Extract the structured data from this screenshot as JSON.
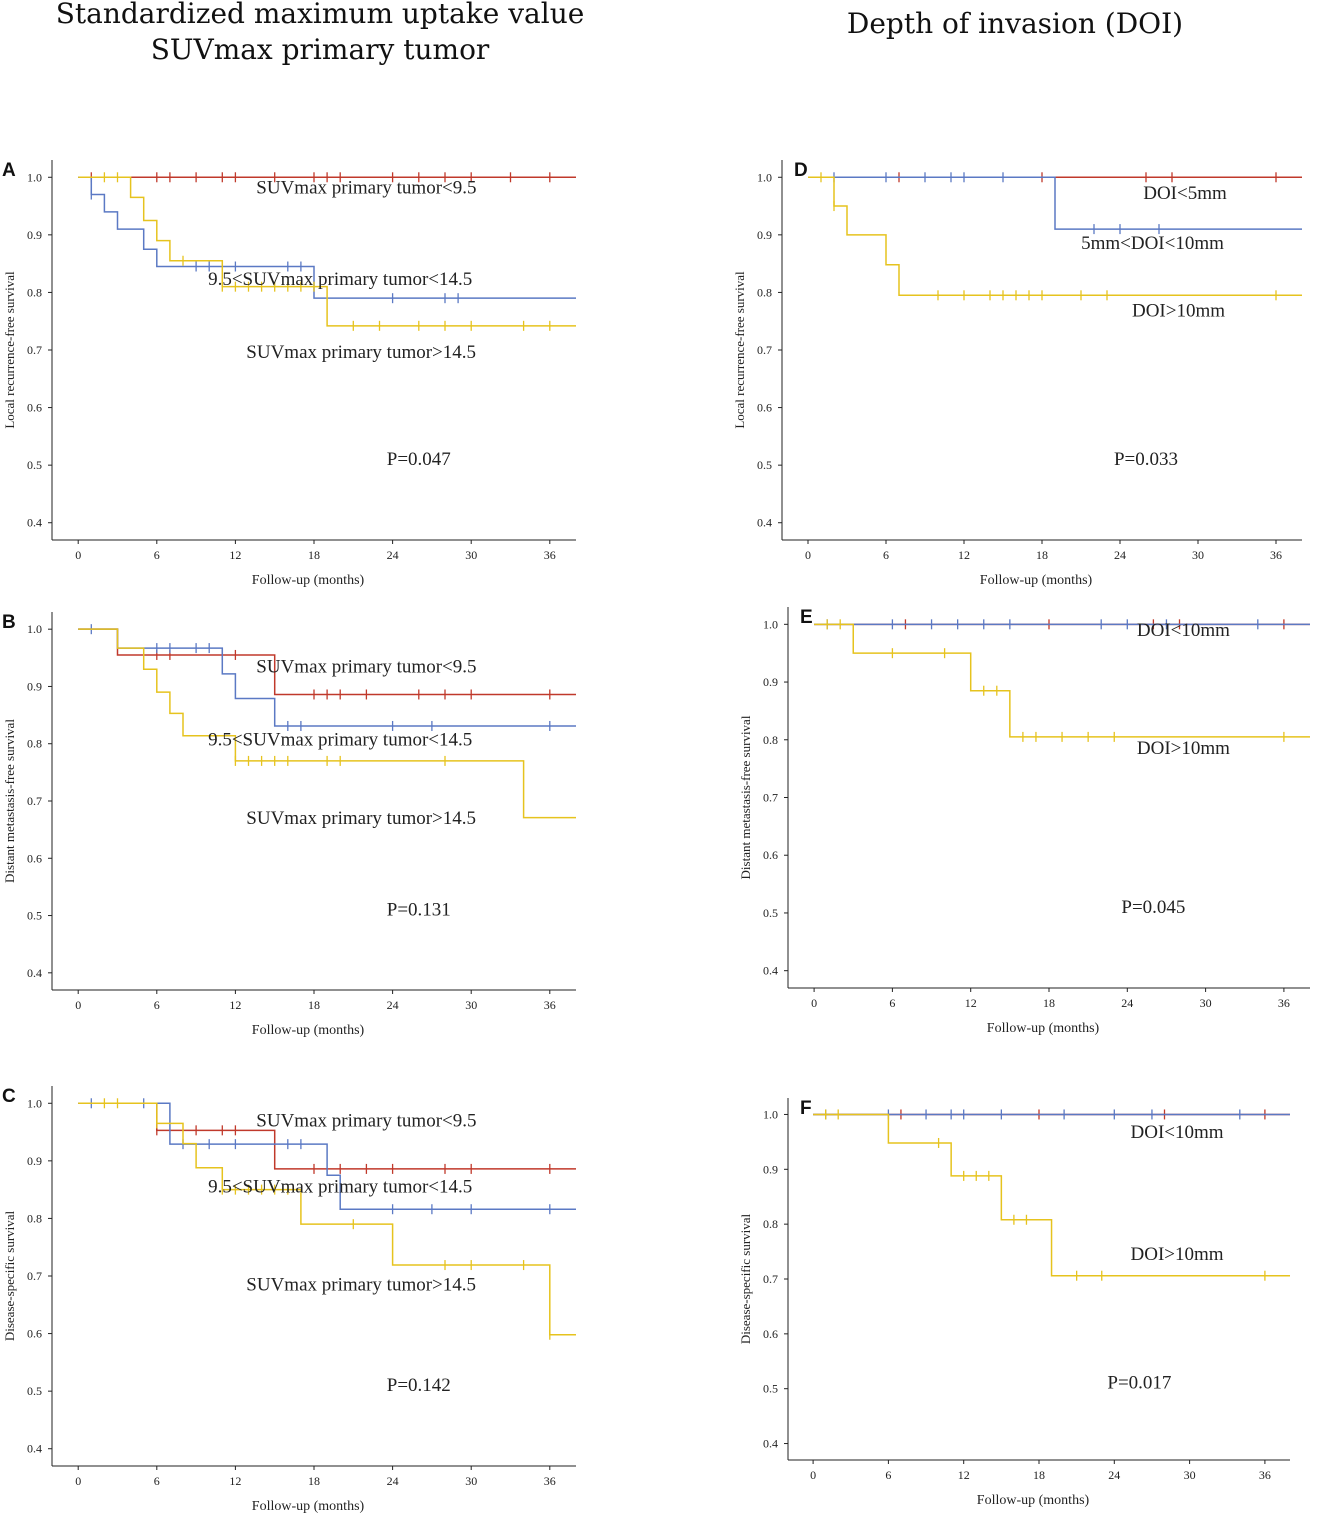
{
  "column_titles": {
    "left_line1": "Standardized maximum uptake value",
    "left_line2": "SUVmax primary tumor",
    "right": "Depth of invasion (DOI)"
  },
  "colors": {
    "red": "#c0392b",
    "blue": "#5b79c4",
    "yellow": "#e6c31e",
    "axis": "#222222"
  },
  "chart_data": [
    {
      "panel": "A",
      "type": "line",
      "subtype": "kaplan-meier",
      "xlabel": "Follow-up (months)",
      "ylabel": "Local recurrence-free survival",
      "xlim": [
        -2,
        38
      ],
      "ylim": [
        0.37,
        1.03
      ],
      "xticks": [
        0,
        6,
        12,
        18,
        24,
        30,
        36
      ],
      "yticks": [
        0.4,
        0.5,
        0.6,
        0.7,
        0.8,
        0.9,
        1.0
      ],
      "pvalue": "P=0.047",
      "series": [
        {
          "name": "SUVmax primary tumor<9.5",
          "color": "red",
          "steps": [
            [
              0,
              1.0
            ],
            [
              38,
              1.0
            ]
          ],
          "censors": [
            1,
            6,
            7,
            9,
            11,
            12,
            15,
            18,
            19,
            20,
            24,
            26,
            28,
            30,
            33,
            36
          ]
        },
        {
          "name": "9.5<SUVmax primary tumor<14.5",
          "color": "blue",
          "steps": [
            [
              0,
              1.0
            ],
            [
              1,
              0.97
            ],
            [
              2,
              0.94
            ],
            [
              3,
              0.91
            ],
            [
              5,
              0.875
            ],
            [
              6,
              0.845
            ],
            [
              18,
              0.79
            ],
            [
              38,
              0.79
            ]
          ],
          "censors": [
            1,
            9,
            10,
            12,
            16,
            17,
            24,
            28,
            29
          ]
        },
        {
          "name": "SUVmax primary tumor>14.5",
          "color": "yellow",
          "steps": [
            [
              0,
              1.0
            ],
            [
              4,
              0.965
            ],
            [
              5,
              0.925
            ],
            [
              6,
              0.89
            ],
            [
              7,
              0.855
            ],
            [
              11,
              0.81
            ],
            [
              19,
              0.742
            ],
            [
              38,
              0.742
            ]
          ],
          "censors": [
            2,
            3,
            8,
            11,
            12,
            13,
            14,
            15,
            16,
            17,
            18,
            21,
            23,
            26,
            28,
            30,
            34,
            36
          ]
        }
      ],
      "labels": [
        {
          "text": "SUVmax primary tumor<9.5",
          "x": 22,
          "y": 0.972
        },
        {
          "text": "9.5<SUVmax primary tumor<14.5",
          "x": 20,
          "y": 0.813
        },
        {
          "text": "SUVmax primary tumor>14.5",
          "x": 21.6,
          "y": 0.686
        }
      ]
    },
    {
      "panel": "B",
      "type": "line",
      "subtype": "kaplan-meier",
      "xlabel": "Follow-up (months)",
      "ylabel": "Distant metastasis-free survival",
      "xlim": [
        -2,
        38
      ],
      "ylim": [
        0.37,
        1.03
      ],
      "xticks": [
        0,
        6,
        12,
        18,
        24,
        30,
        36
      ],
      "yticks": [
        0.4,
        0.5,
        0.6,
        0.7,
        0.8,
        0.9,
        1.0
      ],
      "pvalue": "P=0.131",
      "series": [
        {
          "name": "SUVmax primary tumor<9.5",
          "color": "red",
          "steps": [
            [
              0,
              1.0
            ],
            [
              3,
              0.955
            ],
            [
              15,
              0.886
            ],
            [
              38,
              0.886
            ]
          ],
          "censors": [
            6,
            7,
            11,
            12,
            18,
            19,
            20,
            22,
            26,
            28,
            30,
            36
          ]
        },
        {
          "name": "9.5<SUVmax primary tumor<14.5",
          "color": "blue",
          "steps": [
            [
              0,
              1.0
            ],
            [
              3,
              0.967
            ],
            [
              11,
              0.922
            ],
            [
              12,
              0.879
            ],
            [
              15,
              0.831
            ],
            [
              38,
              0.831
            ]
          ],
          "censors": [
            1,
            6,
            7,
            9,
            10,
            16,
            17,
            24,
            27,
            36
          ]
        },
        {
          "name": "SUVmax primary tumor>14.5",
          "color": "yellow",
          "steps": [
            [
              0,
              1.0
            ],
            [
              3,
              0.967
            ],
            [
              5,
              0.93
            ],
            [
              6,
              0.89
            ],
            [
              7,
              0.853
            ],
            [
              8,
              0.814
            ],
            [
              12,
              0.77
            ],
            [
              34,
              0.671
            ],
            [
              38,
              0.671
            ]
          ],
          "censors": [
            12,
            13,
            14,
            15,
            16,
            19,
            20,
            28
          ]
        }
      ],
      "labels": [
        {
          "text": "SUVmax primary tumor<9.5",
          "x": 22,
          "y": 0.924
        },
        {
          "text": "9.5<SUVmax primary tumor<14.5",
          "x": 20,
          "y": 0.797
        },
        {
          "text": "SUVmax primary tumor>14.5",
          "x": 21.6,
          "y": 0.66
        }
      ]
    },
    {
      "panel": "C",
      "type": "line",
      "subtype": "kaplan-meier",
      "xlabel": "Follow-up (months)",
      "ylabel": "Disease-specific survival",
      "xlim": [
        -2,
        38
      ],
      "ylim": [
        0.37,
        1.03
      ],
      "xticks": [
        0,
        6,
        12,
        18,
        24,
        30,
        36
      ],
      "yticks": [
        0.4,
        0.5,
        0.6,
        0.7,
        0.8,
        0.9,
        1.0
      ],
      "pvalue": "P=0.142",
      "series": [
        {
          "name": "SUVmax primary tumor<9.5",
          "color": "red",
          "steps": [
            [
              0,
              1.0
            ],
            [
              6,
              0.953
            ],
            [
              15,
              0.886
            ],
            [
              38,
              0.886
            ]
          ],
          "censors": [
            6,
            9,
            11,
            12,
            18,
            20,
            22,
            24,
            28,
            30,
            36
          ]
        },
        {
          "name": "9.5<SUVmax primary tumor<14.5",
          "color": "blue",
          "steps": [
            [
              0,
              1.0
            ],
            [
              7,
              0.929
            ],
            [
              19,
              0.875
            ],
            [
              20,
              0.816
            ],
            [
              38,
              0.816
            ]
          ],
          "censors": [
            1,
            5,
            8,
            10,
            12,
            16,
            17,
            24,
            27,
            30,
            36
          ]
        },
        {
          "name": "SUVmax primary tumor>14.5",
          "color": "yellow",
          "steps": [
            [
              0,
              1.0
            ],
            [
              6,
              0.965
            ],
            [
              8,
              0.93
            ],
            [
              9,
              0.888
            ],
            [
              11,
              0.85
            ],
            [
              17,
              0.79
            ],
            [
              24,
              0.719
            ],
            [
              36,
              0.598
            ],
            [
              38,
              0.598
            ]
          ],
          "censors": [
            2,
            3,
            6,
            11,
            12,
            13,
            14,
            15,
            16,
            21,
            28,
            30,
            34,
            36
          ]
        }
      ],
      "labels": [
        {
          "text": "SUVmax primary tumor<9.5",
          "x": 22,
          "y": 0.96
        },
        {
          "text": "9.5<SUVmax primary tumor<14.5",
          "x": 20,
          "y": 0.845
        },
        {
          "text": "SUVmax primary tumor>14.5",
          "x": 21.6,
          "y": 0.675
        }
      ]
    },
    {
      "panel": "D",
      "type": "line",
      "subtype": "kaplan-meier",
      "xlabel": "Follow-up (months)",
      "ylabel": "Local recurrence-free survival",
      "xlim": [
        -2,
        38
      ],
      "ylim": [
        0.37,
        1.03
      ],
      "xticks": [
        0,
        6,
        12,
        18,
        24,
        30,
        36
      ],
      "yticks": [
        0.4,
        0.5,
        0.6,
        0.7,
        0.8,
        0.9,
        1.0
      ],
      "pvalue": "P=0.033",
      "series": [
        {
          "name": "DOI<5mm",
          "color": "red",
          "steps": [
            [
              0,
              1.0
            ],
            [
              38,
              1.0
            ]
          ],
          "censors": [
            7,
            18,
            26,
            28,
            36
          ]
        },
        {
          "name": "5mm<DOI<10mm",
          "color": "blue",
          "steps": [
            [
              0,
              1.0
            ],
            [
              19,
              0.91
            ],
            [
              38,
              0.91
            ]
          ],
          "censors": [
            2,
            6,
            9,
            11,
            12,
            15,
            22,
            24,
            27
          ]
        },
        {
          "name": "DOI>10mm",
          "color": "yellow",
          "steps": [
            [
              0,
              1.0
            ],
            [
              2,
              0.95
            ],
            [
              3,
              0.9
            ],
            [
              6,
              0.848
            ],
            [
              7,
              0.795
            ],
            [
              38,
              0.795
            ]
          ],
          "censors": [
            1,
            2,
            10,
            12,
            14,
            15,
            16,
            17,
            18,
            21,
            23,
            36
          ]
        }
      ],
      "labels": [
        {
          "text": "DOI<5mm",
          "x": 29,
          "y": 0.962
        },
        {
          "text": "5mm<DOI<10mm",
          "x": 26.5,
          "y": 0.875
        },
        {
          "text": "DOI>10mm",
          "x": 28.5,
          "y": 0.758
        }
      ]
    },
    {
      "panel": "E",
      "type": "line",
      "subtype": "kaplan-meier",
      "xlabel": "Follow-up (months)",
      "ylabel": "Distant metastasis-free survival",
      "xlim": [
        -2,
        38
      ],
      "ylim": [
        0.37,
        1.03
      ],
      "xticks": [
        0,
        6,
        12,
        18,
        24,
        30,
        36
      ],
      "yticks": [
        0.4,
        0.5,
        0.6,
        0.7,
        0.8,
        0.9,
        1.0
      ],
      "pvalue": "P=0.045",
      "series": [
        {
          "name": "DOI<10mm",
          "color": "red",
          "steps": [
            [
              0,
              1.0
            ],
            [
              38,
              1.0
            ]
          ],
          "censors": [
            7,
            18,
            26,
            28,
            36
          ]
        },
        {
          "name": "DOI<10mm (blue)",
          "color": "blue",
          "steps": [
            [
              0,
              1.0
            ],
            [
              38,
              1.0
            ]
          ],
          "censors": [
            1,
            6,
            9,
            11,
            13,
            15,
            22,
            24,
            27,
            34
          ]
        },
        {
          "name": "DOI>10mm",
          "color": "yellow",
          "steps": [
            [
              0,
              1.0
            ],
            [
              3,
              0.95
            ],
            [
              12,
              0.885
            ],
            [
              15,
              0.805
            ],
            [
              38,
              0.805
            ]
          ],
          "censors": [
            1,
            2,
            6,
            10,
            13,
            14,
            16,
            17,
            19,
            21,
            23,
            36
          ]
        }
      ],
      "labels": [
        {
          "text": "DOI<10mm",
          "x": 28.3,
          "y": 0.98
        },
        {
          "text": "DOI>10mm",
          "x": 28.3,
          "y": 0.775
        }
      ]
    },
    {
      "panel": "F",
      "type": "line",
      "subtype": "kaplan-meier",
      "xlabel": "Follow-up (months)",
      "ylabel": "Disease-specific survival",
      "xlim": [
        -2,
        38
      ],
      "ylim": [
        0.37,
        1.03
      ],
      "xticks": [
        0,
        6,
        12,
        18,
        24,
        30,
        36
      ],
      "yticks": [
        0.4,
        0.5,
        0.6,
        0.7,
        0.8,
        0.9,
        1.0
      ],
      "pvalue": "P=0.017",
      "series": [
        {
          "name": "DOI<10mm",
          "color": "red",
          "steps": [
            [
              0,
              1.0
            ],
            [
              38,
              1.0
            ]
          ],
          "censors": [
            7,
            18,
            28,
            36
          ]
        },
        {
          "name": "DOI<10mm (blue)",
          "color": "blue",
          "steps": [
            [
              0,
              1.0
            ],
            [
              38,
              1.0
            ]
          ],
          "censors": [
            1,
            6,
            9,
            11,
            12,
            15,
            20,
            24,
            27,
            34
          ]
        },
        {
          "name": "DOI>10mm",
          "color": "yellow",
          "steps": [
            [
              0,
              1.0
            ],
            [
              6,
              0.948
            ],
            [
              11,
              0.888
            ],
            [
              15,
              0.808
            ],
            [
              19,
              0.706
            ],
            [
              38,
              0.706
            ]
          ],
          "censors": [
            1,
            2,
            10,
            12,
            13,
            14,
            16,
            17,
            21,
            23,
            36
          ]
        }
      ],
      "labels": [
        {
          "text": "DOI<10mm",
          "x": 29,
          "y": 0.957
        },
        {
          "text": "DOI>10mm",
          "x": 29,
          "y": 0.735
        }
      ]
    }
  ]
}
